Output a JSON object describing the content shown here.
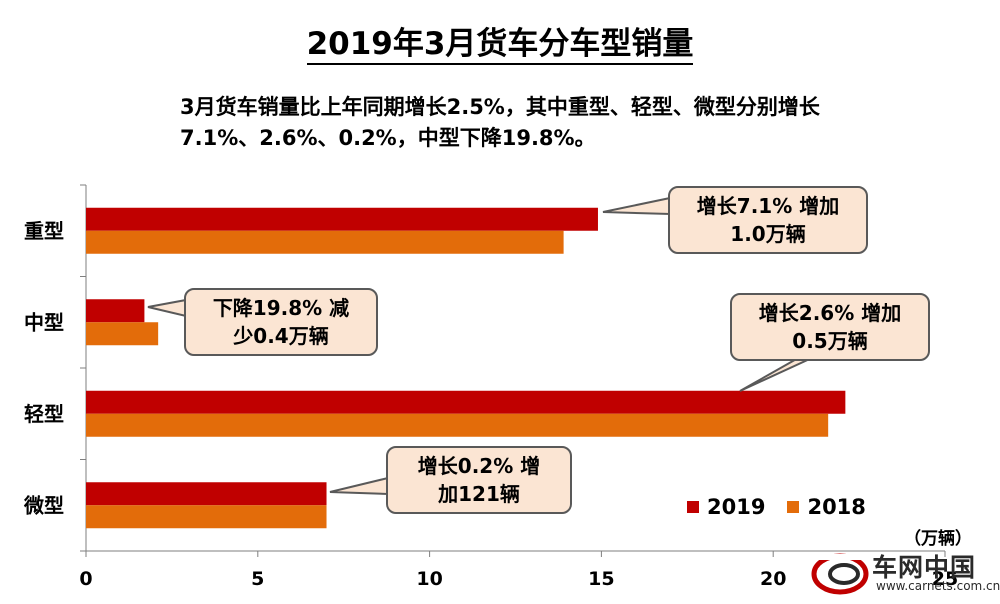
{
  "title": "2019年3月货车分车型销量",
  "summary": {
    "line1": "3月货车销量比上年同期增长2.5%，其中重型、轻型、微型分别增长",
    "line2": "7.1%、2.6%、0.2%，中型下降19.8%。"
  },
  "chart_data": {
    "type": "bar",
    "orientation": "horizontal",
    "categories": [
      "重型",
      "中型",
      "轻型",
      "微型"
    ],
    "series": [
      {
        "name": "2019",
        "color": "#c00000",
        "values": [
          14.9,
          1.7,
          22.1,
          7.0
        ]
      },
      {
        "name": "2018",
        "color": "#e36c0a",
        "values": [
          13.9,
          2.1,
          21.6,
          7.0
        ]
      }
    ],
    "xlim": [
      0,
      25
    ],
    "xticks": [
      0,
      5,
      10,
      15,
      20,
      25
    ],
    "grid": false,
    "legend_position": "bottom-right",
    "unit": "（万辆）"
  },
  "callouts": {
    "heavy": {
      "line1": "增长7.1% 增加",
      "line2": "1.0万辆"
    },
    "medium": {
      "line1": "下降19.8% 减",
      "line2": "少0.4万辆"
    },
    "light": {
      "line1": "增长2.6% 增加",
      "line2": "0.5万辆"
    },
    "micro": {
      "line1": "增长0.2% 增",
      "line2": "加121辆"
    }
  },
  "logo": {
    "name": "车网中国",
    "url": "www.carnets.com.cn"
  }
}
